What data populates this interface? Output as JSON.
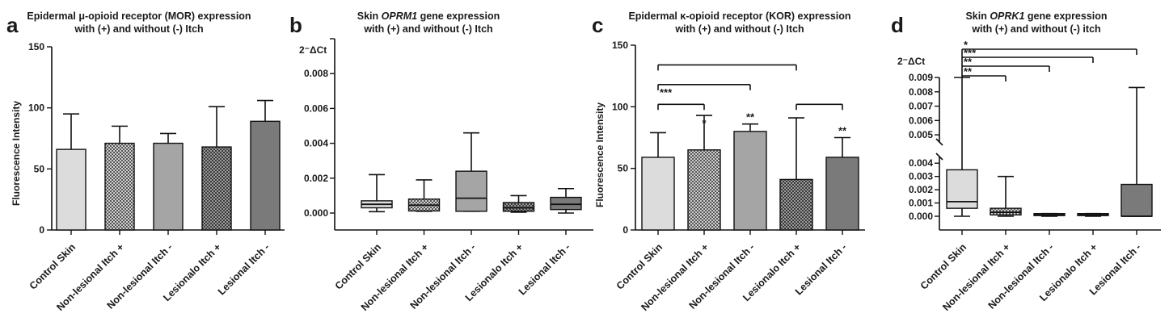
{
  "colors": {
    "control": "#dcdcdc",
    "nonlesional_plus": "#b4b4b4",
    "nonlesional_minus": "#a5a5a5",
    "lesional_plus": "#8a8a8a",
    "lesional_minus": "#7a7a7a",
    "axis": "#111111"
  },
  "chart_data": [
    {
      "type": "bar",
      "letter": "a",
      "title_line1": "Epidermal μ-opioid receptor (MOR) expression",
      "title_line2": "with (+) and without (-) Itch",
      "ylabel": "Fluorescence Intensity",
      "xlabel": "",
      "ylim": [
        0,
        150
      ],
      "yticks": [
        "0",
        "50",
        "100",
        "150"
      ],
      "categories": [
        "Control Skin",
        "Non-lesional Itch +",
        "Non-lesional Itch -",
        "Lesionalo Itch +",
        "Lesional Itch -"
      ],
      "values": [
        66,
        71,
        71,
        68,
        89
      ],
      "error_upper": [
        95,
        85,
        79,
        101,
        106
      ],
      "patterns": [
        "solid",
        "checker",
        "solid",
        "checker",
        "solid"
      ]
    },
    {
      "type": "box",
      "letter": "b",
      "title_prefix": "Skin ",
      "title_gene": "OPRM1",
      "title_suffix": "  gene expression",
      "title_line2": "with (+) and without (-) Itch",
      "ylabel": "2⁻ΔCt",
      "ylim": [
        0,
        0.01
      ],
      "yticks": [
        "0.000",
        "0.002",
        "0.004",
        "0.006",
        "0.008"
      ],
      "categories": [
        "Control Skin",
        "Non-lesional Itch +",
        "Non-lesional Itch -",
        "Lesionalo Itch +",
        "Lesional Itch -"
      ],
      "boxes": [
        {
          "min": 8e-05,
          "q1": 0.0003,
          "median": 0.0005,
          "q3": 0.0007,
          "max": 0.0022
        },
        {
          "min": 0.0001,
          "q1": 0.00012,
          "median": 0.00045,
          "q3": 0.0008,
          "max": 0.0019
        },
        {
          "min": 0.0001,
          "q1": 0.0001,
          "median": 0.00085,
          "q3": 0.0024,
          "max": 0.0046
        },
        {
          "min": 5e-05,
          "q1": 0.0001,
          "median": 0.0003,
          "q3": 0.0006,
          "max": 0.001
        },
        {
          "min": 0.0,
          "q1": 0.0002,
          "median": 0.0005,
          "q3": 0.0009,
          "max": 0.0014
        }
      ],
      "patterns": [
        "solid",
        "checker",
        "solid",
        "checker",
        "solid"
      ]
    },
    {
      "type": "bar",
      "letter": "c",
      "title_line1": "Epidermal κ-opioid receptor (KOR) expression",
      "title_line2": "with (+) and without (-) Itch",
      "ylabel": "Fluorescence Intensity",
      "xlabel": "",
      "ylim": [
        0,
        150
      ],
      "yticks": [
        "0",
        "50",
        "100",
        "150"
      ],
      "categories": [
        "Control Skin",
        "Non-lesional Itch +",
        "Non-lesional Itch -",
        "Lesionalo Itch +",
        "Lesional Itch -"
      ],
      "values": [
        59,
        65,
        80,
        41,
        59
      ],
      "error_upper": [
        79,
        93,
        86,
        91,
        75
      ],
      "patterns": [
        "solid",
        "checker",
        "solid",
        "checker",
        "solid"
      ],
      "bar_stars": [
        "",
        "*",
        "**",
        "",
        "**"
      ],
      "brackets": [
        {
          "from": 0,
          "to": 1,
          "y": 102,
          "label": ""
        },
        {
          "from": 0,
          "to": 2,
          "y": 118,
          "label": "***"
        },
        {
          "from": 0,
          "to": 3,
          "y": 134,
          "label": ""
        },
        {
          "from": 3,
          "to": 4,
          "y": 102,
          "label": ""
        }
      ]
    },
    {
      "type": "box",
      "letter": "d",
      "title_prefix": "Skin ",
      "title_gene": "OPRK1",
      "title_suffix": " gene expression",
      "title_line2": "with (+) and without (-) itch",
      "ylabel": "2⁻ΔCt",
      "ylim_lower": [
        0,
        0.0045
      ],
      "ylim_upper": [
        0.0045,
        0.009
      ],
      "yticks_lower": [
        "0.000",
        "0.001",
        "0.002",
        "0.003",
        "0.004"
      ],
      "yticks_upper": [
        "0.005",
        "0.006",
        "0.007",
        "0.008",
        "0.009"
      ],
      "categories": [
        "Control Skin",
        "Non-lesional Itch +",
        "Non-lesional Itch -",
        "Lesionalo Itch +",
        "Lesional Itch -"
      ],
      "boxes": [
        {
          "min": 0.0,
          "q1": 0.0006,
          "median": 0.0011,
          "q3": 0.0035,
          "max": 0.009
        },
        {
          "min": 0.0,
          "q1": 0.0001,
          "median": 0.0003,
          "q3": 0.0006,
          "max": 0.003
        },
        {
          "min": 0.0,
          "q1": 5e-05,
          "median": 0.0001,
          "q3": 0.0002,
          "max": 0.0002
        },
        {
          "min": 0.0,
          "q1": 5e-05,
          "median": 0.0001,
          "q3": 0.0002,
          "max": 0.0002
        },
        {
          "min": 0.0,
          "q1": 0.0,
          "median": 0.0,
          "q3": 0.0024,
          "max": 0.0083
        }
      ],
      "patterns": [
        "solid",
        "checker",
        "solid",
        "checker",
        "solid"
      ],
      "brackets": [
        {
          "to": 1,
          "label": "**"
        },
        {
          "to": 2,
          "label": "**"
        },
        {
          "to": 3,
          "label": "***"
        },
        {
          "to": 4,
          "label": "*"
        }
      ]
    }
  ]
}
